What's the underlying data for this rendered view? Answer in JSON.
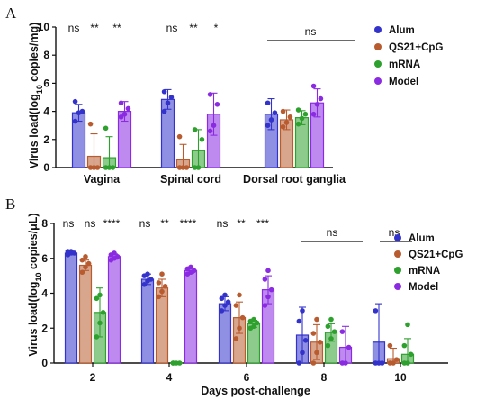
{
  "chart_data": [
    {
      "panel": "A",
      "type": "bar",
      "ylabel": "Virus load(log10 copies/mg)",
      "ylim": [
        0,
        10
      ],
      "yticks": [
        "0",
        "2",
        "4",
        "6",
        "8",
        "10"
      ],
      "categories": [
        "Vagina",
        "Spinal cord",
        "Dorsal root ganglia"
      ],
      "series": [
        {
          "name": "Alum",
          "color": "#3333cc",
          "values": [
            3.9,
            4.85,
            3.8
          ],
          "errors": [
            0.6,
            0.7,
            1.1
          ],
          "points": [
            [
              3.3,
              3.9,
              4.0,
              4.7
            ],
            [
              4.0,
              4.6,
              5.0,
              5.4
            ],
            [
              3.0,
              3.4,
              3.9,
              4.6
            ]
          ]
        },
        {
          "name": "QS21+CpG",
          "color": "#b85c30",
          "values": [
            0.8,
            0.55,
            3.4
          ],
          "errors": [
            1.6,
            1.1,
            0.7
          ],
          "points": [
            [
              0.0,
              0.0,
              0.0,
              3.1
            ],
            [
              0.0,
              0.0,
              0.0,
              2.2
            ],
            [
              2.9,
              3.2,
              3.6,
              4.0
            ]
          ]
        },
        {
          "name": "mRNA",
          "color": "#2ea02e",
          "values": [
            0.7,
            1.2,
            3.55
          ],
          "errors": [
            1.5,
            1.5,
            0.5
          ],
          "points": [
            [
              0.0,
              0.0,
              0.0,
              2.8
            ],
            [
              0.0,
              0.0,
              2.0,
              2.7
            ],
            [
              3.1,
              3.5,
              3.8,
              4.1
            ]
          ]
        },
        {
          "name": "Model",
          "color": "#8a2be2",
          "values": [
            4.0,
            3.8,
            4.6
          ],
          "errors": [
            0.7,
            1.5,
            1.0
          ],
          "points": [
            [
              3.6,
              3.8,
              4.2,
              4.6
            ],
            [
              2.6,
              3.0,
              4.5,
              5.2
            ],
            [
              3.8,
              4.5,
              4.9,
              5.8
            ]
          ]
        }
      ],
      "significance": [
        [
          "ns",
          "**",
          "**"
        ],
        [
          "ns",
          "**",
          "*"
        ],
        [
          "ns"
        ]
      ],
      "legend": "right"
    },
    {
      "panel": "B",
      "type": "bar",
      "xlabel": "Days post-challenge",
      "ylabel": "Virus load(log10 copies/μL)",
      "ylim": [
        0,
        8
      ],
      "yticks": [
        "0",
        "2",
        "4",
        "6",
        "8"
      ],
      "categories": [
        "2",
        "4",
        "6",
        "8",
        "10"
      ],
      "series": [
        {
          "name": "Alum",
          "color": "#3333cc",
          "values": [
            6.3,
            4.8,
            3.4,
            1.6,
            1.2
          ],
          "errors": [
            0.1,
            0.3,
            0.4,
            1.6,
            2.2
          ],
          "points": [
            [
              6.2,
              6.3,
              6.3,
              6.4,
              6.4
            ],
            [
              4.5,
              4.7,
              4.8,
              5.0,
              5.1
            ],
            [
              3.0,
              3.3,
              3.5,
              3.7,
              3.9
            ],
            [
              0.0,
              0.6,
              1.3,
              2.4,
              3.0
            ],
            [
              0.0,
              0.0,
              0.0,
              3.0
            ]
          ]
        },
        {
          "name": "QS21+CpG",
          "color": "#b85c30",
          "values": [
            5.6,
            4.3,
            2.6,
            1.2,
            0.25
          ],
          "errors": [
            0.3,
            0.5,
            0.9,
            1.0,
            0.6
          ],
          "points": [
            [
              5.2,
              5.5,
              5.7,
              5.9,
              6.1
            ],
            [
              3.8,
              4.1,
              4.4,
              4.6,
              5.1
            ],
            [
              1.4,
              2.0,
              2.6,
              3.3,
              3.9
            ],
            [
              0.0,
              0.6,
              1.2,
              1.7,
              2.5
            ],
            [
              0.0,
              0.0,
              0.2,
              1.0
            ]
          ]
        },
        {
          "name": "mRNA",
          "color": "#2ea02e",
          "values": [
            2.9,
            0.02,
            2.25,
            1.75,
            0.5
          ],
          "errors": [
            1.4,
            0.05,
            0.2,
            0.5,
            0.9
          ],
          "points": [
            [
              1.5,
              2.3,
              2.9,
              3.7,
              3.9
            ],
            [
              0.0,
              0.0,
              0.0,
              0.0
            ],
            [
              2.0,
              2.1,
              2.3,
              2.4,
              2.5
            ],
            [
              1.0,
              1.4,
              1.8,
              2.1,
              2.5
            ],
            [
              0.0,
              0.0,
              0.5,
              1.0,
              2.2
            ]
          ]
        },
        {
          "name": "Model",
          "color": "#8a2be2",
          "values": [
            6.1,
            5.3,
            4.2,
            0.9,
            0.0
          ],
          "errors": [
            0.15,
            0.15,
            0.8,
            1.2,
            0.0
          ],
          "points": [
            [
              5.9,
              6.0,
              6.1,
              6.2,
              6.3
            ],
            [
              5.1,
              5.2,
              5.3,
              5.4,
              5.5
            ],
            [
              3.3,
              3.8,
              4.2,
              4.8,
              5.3
            ],
            [
              0.0,
              0.0,
              0.9,
              1.8
            ],
            []
          ]
        }
      ],
      "significance": [
        [
          "ns",
          "ns",
          "****"
        ],
        [
          "ns",
          "**",
          "****"
        ],
        [
          "ns",
          "**",
          "***"
        ],
        [
          "ns"
        ],
        [
          "ns"
        ]
      ],
      "legend": "right"
    }
  ],
  "panel_letters": {
    "a": "A",
    "b": "B"
  },
  "axis_titles": {
    "a_y_main": "Virus load(log",
    "a_y_sub": "10",
    "a_y_tail": " copies/mg)",
    "b_y_main": "Virus load(log",
    "b_y_sub": "10",
    "b_y_tail": " copies/μL)",
    "b_x": "Days post-challenge"
  }
}
